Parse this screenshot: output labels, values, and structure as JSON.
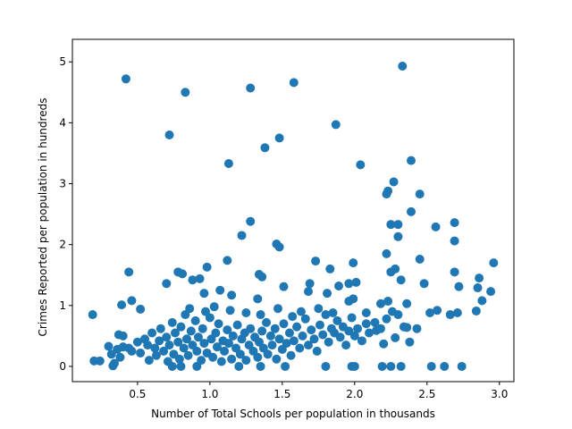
{
  "chart_data": {
    "type": "scatter",
    "x_label": "Number of Total Schools per population in thousands",
    "y_label": "Crimes Reported per population in hundreds",
    "color": "#1f77b4",
    "xlim": [
      0.05,
      3.1
    ],
    "ylim": [
      -0.25,
      5.37
    ],
    "xticks": [
      0.5,
      {
        "value": 1.0,
        "label": "1.0"
      },
      1.5,
      {
        "value": 2.0,
        "label": "2.0"
      },
      2.5,
      {
        "value": 3.0,
        "label": "3.0"
      }
    ],
    "yticks": [
      0,
      1,
      2,
      3,
      4,
      5
    ],
    "x": [
      0.42,
      0.83,
      1.28,
      1.58,
      2.33,
      0.72,
      1.87,
      1.48,
      1.38,
      1.13,
      2.04,
      2.39,
      2.27,
      2.23,
      2.22,
      2.45,
      2.39,
      2.25,
      2.3,
      2.56,
      2.69,
      1.28,
      1.22,
      2.3,
      2.69,
      1.46,
      1.48,
      2.96,
      1.73,
      1.99,
      2.45,
      2.22,
      0.44,
      0.78,
      0.81,
      0.98,
      1.12,
      1.34,
      1.36,
      1.83,
      2.25,
      2.28,
      2.69,
      2.86,
      2.32,
      2.48,
      0.7,
      0.88,
      0.93,
      1.69,
      1.96,
      1.89,
      1.51,
      2.01,
      2.72,
      2.85,
      2.94,
      1.07,
      1.15,
      0.96,
      0.46,
      0.39,
      0.52,
      1.33,
      1.68,
      1.81,
      1.99,
      1.96,
      2.18,
      2.23,
      2.36,
      2.88,
      2.57,
      2.52,
      2.71,
      2.66,
      2.84,
      0.19,
      0.2,
      0.24,
      0.33,
      0.74,
      0.8,
      0.91,
      1.2,
      1.35,
      1.52,
      1.8,
      1.98,
      2.0,
      2.19,
      2.25,
      2.53,
      2.62,
      2.74,
      2.32,
      2.38,
      2.28,
      2.43,
      2.36,
      2.08,
      2.15,
      2.2,
      0.3,
      0.32,
      0.34,
      0.36,
      0.38,
      0.4,
      0.37,
      0.4,
      0.44,
      0.46,
      0.5,
      0.52,
      0.55,
      0.57,
      0.58,
      0.6,
      0.62,
      0.63,
      0.65,
      0.66,
      0.68,
      0.7,
      0.71,
      0.72,
      0.74,
      0.75,
      0.76,
      0.78,
      0.79,
      0.8,
      0.82,
      0.83,
      0.84,
      0.85,
      0.87,
      0.88,
      0.9,
      0.91,
      0.92,
      0.94,
      0.95,
      0.96,
      0.98,
      1.0,
      1.01,
      1.02,
      1.04,
      1.05,
      1.06,
      1.08,
      1.09,
      1.1,
      1.12,
      1.13,
      1.15,
      1.16,
      1.18,
      1.19,
      1.21,
      1.22,
      1.24,
      1.25,
      1.27,
      1.28,
      1.3,
      1.31,
      1.33,
      1.34,
      1.36,
      1.37,
      1.39,
      1.4,
      1.42,
      1.43,
      1.45,
      1.46,
      1.48,
      1.5,
      1.51,
      1.53,
      1.55,
      1.56,
      1.58,
      1.6,
      1.62,
      1.64,
      1.66,
      1.68,
      1.7,
      1.72,
      1.74,
      1.76,
      1.78,
      1.8,
      1.82,
      1.84,
      1.86,
      1.88,
      1.9,
      1.92,
      1.94,
      1.96,
      1.98,
      2.0,
      2.02,
      2.05,
      2.08,
      2.1,
      2.14,
      2.18,
      2.22,
      2.26,
      2.3,
      2.34,
      0.86,
      0.97,
      1.03,
      1.14,
      1.25,
      1.35,
      1.47,
      1.57,
      1.63,
      1.75,
      1.85
    ],
    "values": [
      4.72,
      4.5,
      4.57,
      4.66,
      4.93,
      3.8,
      3.97,
      3.75,
      3.59,
      3.33,
      3.31,
      3.38,
      3.03,
      2.88,
      2.83,
      2.83,
      2.54,
      2.33,
      2.33,
      2.29,
      2.36,
      2.38,
      2.15,
      2.13,
      2.06,
      2.01,
      1.96,
      1.7,
      1.73,
      1.7,
      1.76,
      1.85,
      1.55,
      1.55,
      1.52,
      1.63,
      1.74,
      1.51,
      1.47,
      1.6,
      1.55,
      1.6,
      1.55,
      1.45,
      1.42,
      1.36,
      1.36,
      1.42,
      1.44,
      1.36,
      1.36,
      1.32,
      1.31,
      1.38,
      1.31,
      1.29,
      1.23,
      1.25,
      1.17,
      1.2,
      1.08,
      1.01,
      0.94,
      1.11,
      1.23,
      1.2,
      1.11,
      1.07,
      1.03,
      1.07,
      1.03,
      1.08,
      0.92,
      0.88,
      0.88,
      0.85,
      0.91,
      0.85,
      0.09,
      0.09,
      0.01,
      0,
      0,
      0,
      0,
      0,
      0,
      0,
      0,
      0,
      0,
      0,
      0,
      0,
      0,
      0,
      0.4,
      0.47,
      0.62,
      0.64,
      0.7,
      0.59,
      0.37,
      0.33,
      0.2,
      0.05,
      0.28,
      0.15,
      0.32,
      0.52,
      0.5,
      0.3,
      0.25,
      0.4,
      0.22,
      0.45,
      0.35,
      0.1,
      0.55,
      0.3,
      0.18,
      0.42,
      0.62,
      0.25,
      0.48,
      0.08,
      0.35,
      0.72,
      0.2,
      0.55,
      0.4,
      0.12,
      0.65,
      0.3,
      0.85,
      0.45,
      0.18,
      0.58,
      0.35,
      0.75,
      0.25,
      0.48,
      0.1,
      0.62,
      0.38,
      0.22,
      0.8,
      0.45,
      0.15,
      0.55,
      0.32,
      0.7,
      0.08,
      0.42,
      0.25,
      0.6,
      0.38,
      0.12,
      0.5,
      0.3,
      0.68,
      0.2,
      0.45,
      0.55,
      0.1,
      0.35,
      0.62,
      0.25,
      0.48,
      0.15,
      0.4,
      0.58,
      0.3,
      0.72,
      0.2,
      0.5,
      0.35,
      0.62,
      0.12,
      0.45,
      0.28,
      0.7,
      0.38,
      0.55,
      0.18,
      0.42,
      0.65,
      0.3,
      0.5,
      0.78,
      0.35,
      0.6,
      0.45,
      0.25,
      0.68,
      0.52,
      0.85,
      0.4,
      0.62,
      0.55,
      0.75,
      0.48,
      0.65,
      0.35,
      0.58,
      0.8,
      0.5,
      0.62,
      0.42,
      0.88,
      0.55,
      0.72,
      0.62,
      0.78,
      0.9,
      0.85,
      0.65,
      0.95,
      0.9,
      0.98,
      0.92,
      0.88,
      0.85,
      0.95,
      0.82,
      0.9,
      0.95,
      0.88
    ]
  }
}
